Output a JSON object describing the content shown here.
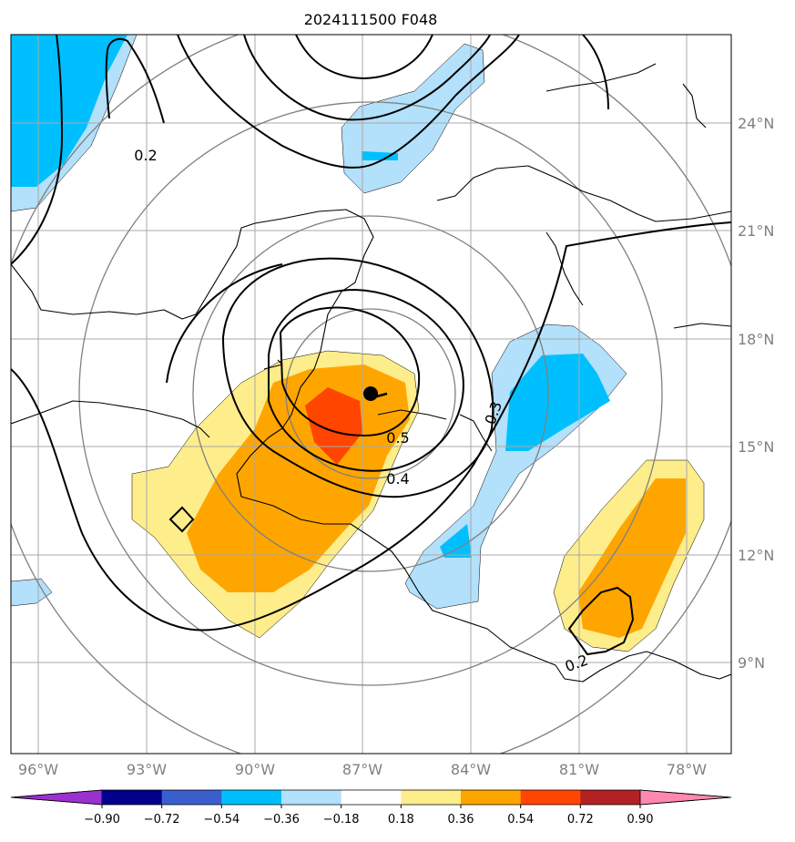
{
  "title": "2024111500 F048",
  "map": {
    "lon_ticks": [
      "96°W",
      "93°W",
      "90°W",
      "87°W",
      "84°W",
      "81°W",
      "78°W"
    ],
    "lat_ticks": [
      "24°N",
      "21°N",
      "18°N",
      "15°N",
      "12°N",
      "9°N"
    ],
    "contour_labels": [
      "0.2",
      "0.5",
      "0.4",
      "0.3",
      "0.2"
    ],
    "shading_colors": {
      "light_blue": "#b3e0fa",
      "blue": "#00bfff",
      "light_yellow": "#feed8b",
      "orange": "#ffa500",
      "red_orange": "#ff4500"
    }
  },
  "colorbar": {
    "labels": [
      "−0.90",
      "−0.72",
      "−0.54",
      "−0.36",
      "−0.18",
      "0.18",
      "0.36",
      "0.54",
      "0.72",
      "0.90"
    ],
    "colors": [
      "#9b30d0",
      "#00008b",
      "#3a5fcd",
      "#00bfff",
      "#b3e0fa",
      "#ffffff",
      "#feed8b",
      "#ffa500",
      "#ff4500",
      "#b22222",
      "#ff88b0"
    ]
  }
}
